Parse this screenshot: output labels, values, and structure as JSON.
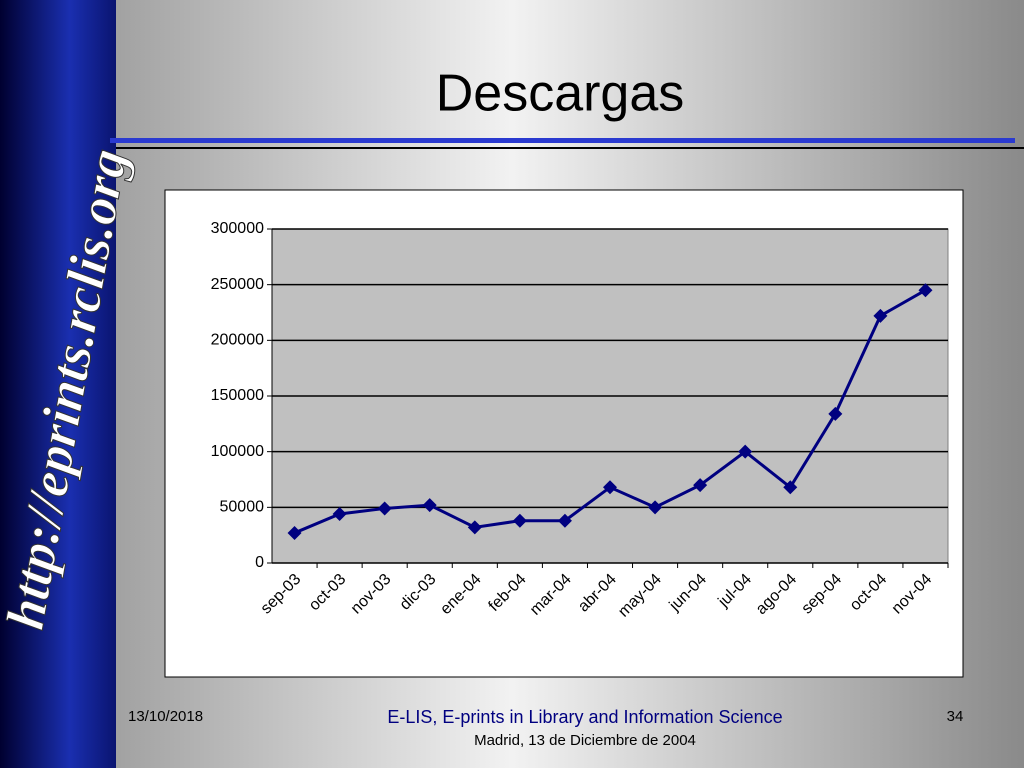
{
  "slide": {
    "sidebar_text": "http://eprints.rclis.org",
    "date": "13/10/2018",
    "footer": "E-LIS, E-prints in Library and Information Science",
    "subfooter": "Madrid, 13 de Diciembre de 2004",
    "page_number": "34"
  },
  "chart_data": {
    "type": "line",
    "title": "Descargas",
    "categories": [
      "sep-03",
      "oct-03",
      "nov-03",
      "dic-03",
      "ene-04",
      "feb-04",
      "mar-04",
      "abr-04",
      "may-04",
      "jun-04",
      "jul-04",
      "ago-04",
      "sep-04",
      "oct-04",
      "nov-04"
    ],
    "values": [
      27000,
      44000,
      49000,
      52000,
      32000,
      38000,
      38000,
      68000,
      50000,
      70000,
      100000,
      68000,
      134000,
      222000,
      245000
    ],
    "color": "#000080",
    "ylim": [
      0,
      300000
    ],
    "yticks": [
      0,
      50000,
      100000,
      150000,
      200000,
      250000,
      300000
    ],
    "grid": true
  }
}
